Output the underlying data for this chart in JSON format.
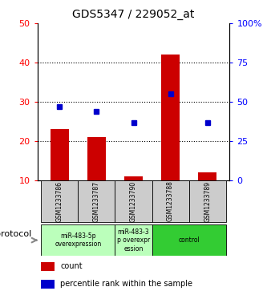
{
  "title": "GDS5347 / 229052_at",
  "samples": [
    "GSM1233786",
    "GSM1233787",
    "GSM1233790",
    "GSM1233788",
    "GSM1233789"
  ],
  "count_values": [
    23,
    21,
    11,
    42,
    12
  ],
  "percentile_values": [
    47,
    44,
    37,
    55,
    37
  ],
  "ylim_left": [
    10,
    50
  ],
  "ylim_right": [
    0,
    100
  ],
  "yticks_left": [
    10,
    20,
    30,
    40,
    50
  ],
  "yticks_right": [
    0,
    25,
    50,
    75,
    100
  ],
  "ytick_labels_right": [
    "0",
    "25",
    "50",
    "75",
    "100%"
  ],
  "bar_color": "#cc0000",
  "dot_color": "#0000cc",
  "grid_lines": [
    20,
    30,
    40
  ],
  "groups": [
    {
      "start": 0,
      "end": 1,
      "label": "miR-483-5p\noverexpression",
      "color": "#bbffbb"
    },
    {
      "start": 2,
      "end": 2,
      "label": "miR-483-3\np overexpr\nession",
      "color": "#bbffbb"
    },
    {
      "start": 3,
      "end": 4,
      "label": "control",
      "color": "#33cc33"
    }
  ],
  "protocol_label": "protocol",
  "legend_count_label": "count",
  "legend_pct_label": "percentile rank within the sample",
  "sample_box_color": "#cccccc",
  "title_fontsize": 10,
  "tick_fontsize": 8,
  "label_fontsize": 7,
  "legend_fontsize": 7
}
